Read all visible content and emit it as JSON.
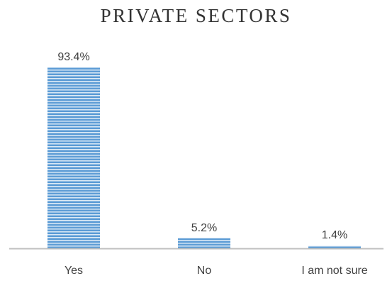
{
  "chart_data": {
    "type": "bar",
    "title": "PRIVATE SECTORS",
    "categories": [
      "Yes",
      "No",
      "I am not sure"
    ],
    "values": [
      93.4,
      5.2,
      1.4
    ],
    "value_labels": [
      "93.4%",
      "5.2%",
      "1.4%"
    ],
    "xlabel": "",
    "ylabel": "",
    "ylim": [
      0,
      93.4
    ],
    "grid": false,
    "legend": "none",
    "bar_color": "#5b9bd5",
    "bar_stripe_color": "#ffffff",
    "bar_fill_pattern": "horizontal-stripes",
    "axis_color": "#bfbfbf"
  }
}
